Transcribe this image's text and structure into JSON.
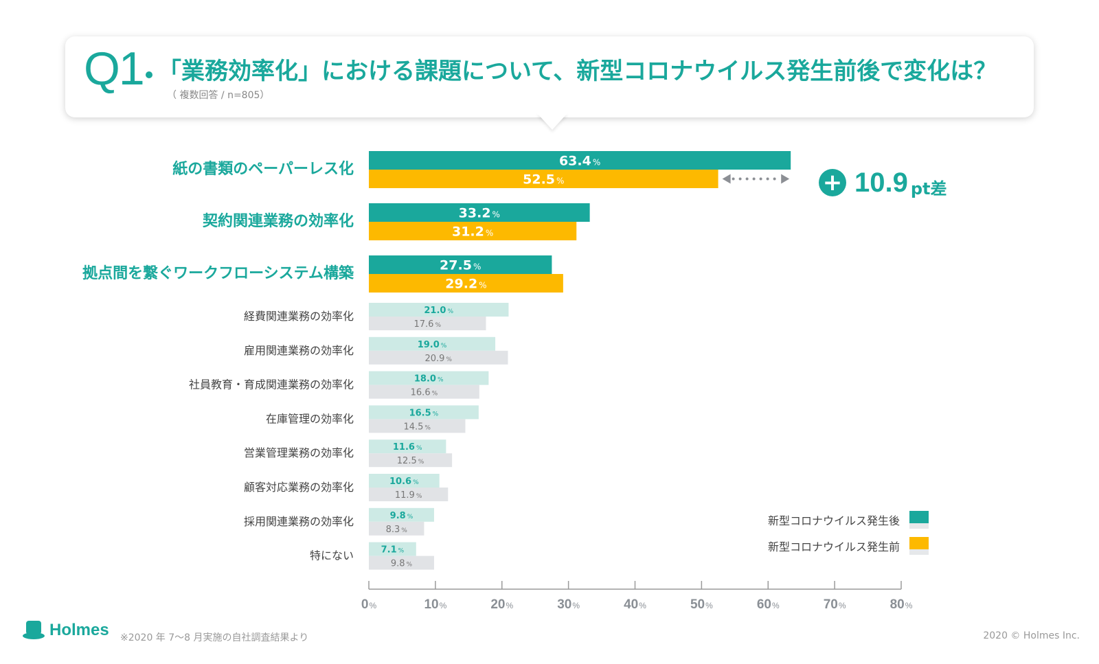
{
  "header": {
    "q_label": "Q1",
    "title": "「業務効率化」における課題について、新型コロナウイルス発生前後で変化は？",
    "subtitle": "（ 複数回答 / n=805）"
  },
  "highlight": {
    "plus": "+",
    "value": "10.9",
    "unit": "pt差"
  },
  "legend": {
    "after_label": "新型コロナウイルス発生後",
    "before_label": "新型コロナウイルス発生前"
  },
  "colors": {
    "accent": "#1aa89c",
    "after_major": "#1aa89c",
    "before_major": "#fdb900",
    "after_minor": "#cdeae5",
    "before_minor": "#e1e3e6",
    "axis": "#9a9a9a"
  },
  "footer": {
    "logo_text": "Holmes",
    "note": "※2020 年 7〜8 月実施の自社調査結果より",
    "copyright": "2020 © Holmes Inc."
  },
  "chart_data": {
    "type": "bar",
    "orientation": "horizontal",
    "xlim": [
      0,
      80
    ],
    "x_ticks": [
      0,
      10,
      20,
      30,
      40,
      50,
      60,
      70,
      80
    ],
    "tick_suffix": "%",
    "categories": [
      "紙の書類のペーパーレス化",
      "契約関連業務の効率化",
      "拠点間を繋ぐワークフローシステム構築",
      "経費関連業務の効率化",
      "雇用関連業務の効率化",
      "社員教育・育成関連業務の効率化",
      "在庫管理の効率化",
      "営業管理業務の効率化",
      "顧客対応業務の効率化",
      "採用関連業務の効率化",
      "特にない"
    ],
    "highlighted_count": 3,
    "series": [
      {
        "name": "新型コロナウイルス発生後",
        "values": [
          63.4,
          33.2,
          27.5,
          21.0,
          19.0,
          18.0,
          16.5,
          11.6,
          10.6,
          9.8,
          7.1
        ]
      },
      {
        "name": "新型コロナウイルス発生前",
        "values": [
          52.5,
          31.2,
          29.2,
          17.6,
          20.9,
          16.6,
          14.5,
          12.5,
          11.9,
          8.3,
          9.8
        ]
      }
    ]
  }
}
